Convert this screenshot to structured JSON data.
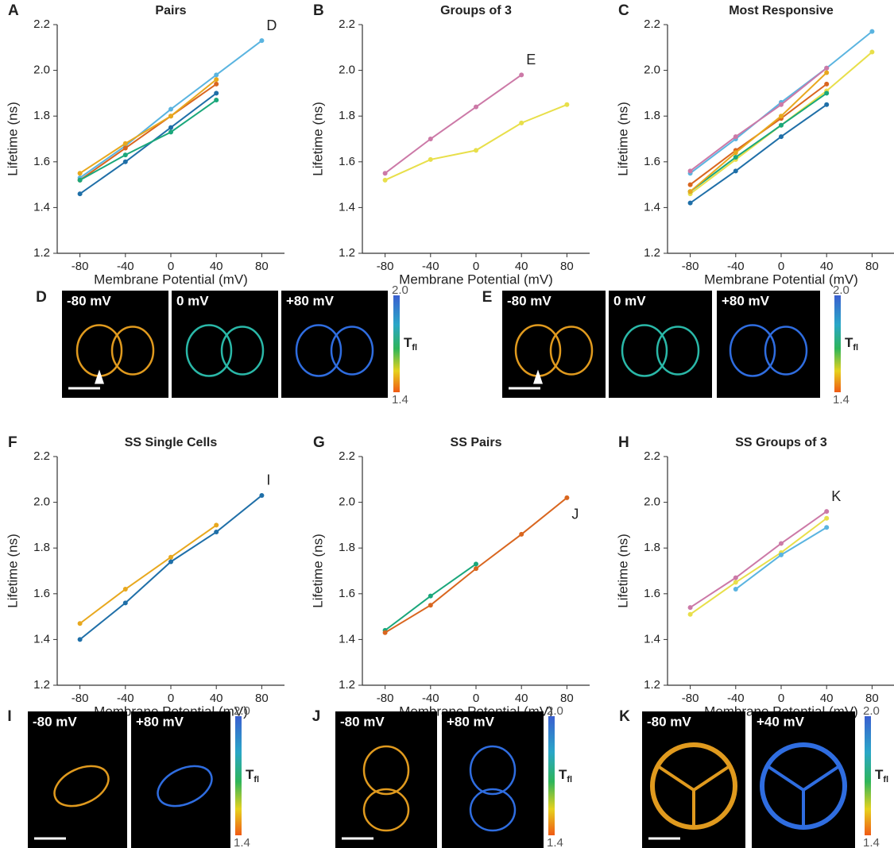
{
  "chart_data": [
    {
      "type": "line",
      "panel": "A",
      "title": "Pairs",
      "xlabel": "Membrane Potential (mV)",
      "ylabel": "Lifetime (ns)",
      "annotation": "D",
      "x": [
        -80,
        -40,
        0,
        40,
        80
      ],
      "xlim": [
        -100,
        100
      ],
      "xticks": [
        -80,
        -40,
        0,
        40,
        80
      ],
      "ylim": [
        1.2,
        2.2
      ],
      "yticks": [
        1.2,
        1.4,
        1.6,
        1.8,
        {
          "value": 2,
          "label": "2.0"
        },
        2.2
      ],
      "series": [
        {
          "color": "#5ab4e0",
          "values": [
            1.53,
            1.67,
            1.83,
            1.98,
            2.13
          ]
        },
        {
          "color": "#d9661f",
          "values": [
            1.52,
            1.66,
            1.8,
            1.94,
            null
          ]
        },
        {
          "color": "#1f6fa8",
          "values": [
            1.46,
            1.6,
            1.75,
            1.9,
            null
          ]
        },
        {
          "color": "#1aa77b",
          "values": [
            1.52,
            1.63,
            1.73,
            1.87,
            null
          ]
        },
        {
          "color": "#e8a81e",
          "values": [
            1.55,
            1.68,
            1.8,
            1.96,
            null
          ]
        }
      ]
    },
    {
      "type": "line",
      "panel": "B",
      "title": "Groups of 3",
      "xlabel": "Membrane Potential (mV)",
      "ylabel": "Lifetime (ns)",
      "annotation": "E",
      "x": [
        -80,
        -40,
        0,
        40,
        80
      ],
      "xlim": [
        -100,
        100
      ],
      "xticks": [
        -80,
        -40,
        0,
        40,
        80
      ],
      "ylim": [
        1.2,
        2.2
      ],
      "yticks": [
        1.2,
        1.4,
        1.6,
        1.8,
        {
          "value": 2,
          "label": "2.0"
        },
        2.2
      ],
      "series": [
        {
          "color": "#cc79a7",
          "values": [
            1.55,
            1.7,
            1.84,
            1.98,
            null
          ]
        },
        {
          "color": "#e8df4a",
          "values": [
            1.52,
            1.61,
            1.65,
            1.77,
            1.85
          ]
        }
      ]
    },
    {
      "type": "line",
      "panel": "C",
      "title": "Most Responsive",
      "xlabel": "Membrane Potential (mV)",
      "ylabel": "Lifetime (ns)",
      "x": [
        -80,
        -40,
        0,
        40,
        80
      ],
      "xlim": [
        -100,
        100
      ],
      "xticks": [
        -80,
        -40,
        0,
        40,
        80
      ],
      "ylim": [
        1.2,
        2.2
      ],
      "yticks": [
        1.2,
        1.4,
        1.6,
        1.8,
        {
          "value": 2,
          "label": "2.0"
        },
        2.2
      ],
      "series": [
        {
          "color": "#5ab4e0",
          "values": [
            1.55,
            1.7,
            1.86,
            2.01,
            2.17
          ]
        },
        {
          "color": "#e8df4a",
          "values": [
            1.46,
            1.61,
            1.76,
            1.91,
            2.08
          ]
        },
        {
          "color": "#cc79a7",
          "values": [
            1.56,
            1.71,
            1.85,
            2.01,
            null
          ]
        },
        {
          "color": "#d9661f",
          "values": [
            1.5,
            1.65,
            1.79,
            1.94,
            null
          ]
        },
        {
          "color": "#1f6fa8",
          "values": [
            1.42,
            1.56,
            1.71,
            1.85,
            null
          ]
        },
        {
          "color": "#1aa77b",
          "values": [
            1.47,
            1.62,
            1.76,
            1.9,
            null
          ]
        },
        {
          "color": "#e8a81e",
          "values": [
            1.47,
            1.64,
            1.8,
            1.99,
            null
          ]
        }
      ]
    },
    {
      "type": "line",
      "panel": "F",
      "title": "SS Single Cells",
      "xlabel": "Membrane Potential (mV)",
      "ylabel": "Lifetime (ns)",
      "annotation": "I",
      "x": [
        -80,
        -40,
        0,
        40,
        80
      ],
      "xlim": [
        -100,
        100
      ],
      "xticks": [
        -80,
        -40,
        0,
        40,
        80
      ],
      "ylim": [
        1.2,
        2.2
      ],
      "yticks": [
        1.2,
        1.4,
        1.6,
        1.8,
        {
          "value": 2,
          "label": "2.0"
        },
        2.2
      ],
      "series": [
        {
          "color": "#e8a81e",
          "values": [
            1.47,
            1.62,
            1.76,
            1.9,
            null
          ]
        },
        {
          "color": "#1f6fa8",
          "values": [
            1.4,
            1.56,
            1.74,
            1.87,
            2.03
          ]
        }
      ]
    },
    {
      "type": "line",
      "panel": "G",
      "title": "SS Pairs",
      "xlabel": "Membrane Potential (mV)",
      "ylabel": "Lifetime (ns)",
      "annotation": "J",
      "x": [
        -80,
        -40,
        0,
        40,
        80
      ],
      "xlim": [
        -100,
        100
      ],
      "xticks": [
        -80,
        -40,
        0,
        40,
        80
      ],
      "ylim": [
        1.2,
        2.2
      ],
      "yticks": [
        1.2,
        1.4,
        1.6,
        1.8,
        {
          "value": 2,
          "label": "2.0"
        },
        2.2
      ],
      "series": [
        {
          "color": "#1aa77b",
          "values": [
            1.44,
            1.59,
            1.73,
            null,
            null
          ]
        },
        {
          "color": "#d9661f",
          "values": [
            1.43,
            1.55,
            1.71,
            1.86,
            2.02
          ]
        }
      ]
    },
    {
      "type": "line",
      "panel": "H",
      "title": "SS Groups of 3",
      "xlabel": "Membrane Potential (mV)",
      "ylabel": "Lifetime (ns)",
      "annotation": "K",
      "x": [
        -80,
        -40,
        0,
        40,
        80
      ],
      "xlim": [
        -100,
        100
      ],
      "xticks": [
        -80,
        -40,
        0,
        40,
        80
      ],
      "ylim": [
        1.2,
        2.2
      ],
      "yticks": [
        1.2,
        1.4,
        1.6,
        1.8,
        {
          "value": 2,
          "label": "2.0"
        },
        2.2
      ],
      "series": [
        {
          "color": "#cc79a7",
          "values": [
            1.54,
            1.67,
            1.82,
            1.96,
            null
          ]
        },
        {
          "color": "#e8df4a",
          "values": [
            1.51,
            1.65,
            1.78,
            1.93,
            null
          ]
        },
        {
          "color": "#5ab4e0",
          "values": [
            null,
            1.62,
            1.77,
            1.89,
            null
          ]
        }
      ]
    }
  ],
  "image_panels": [
    {
      "panel": "D",
      "frames": [
        "-80 mV",
        "0 mV",
        "+80 mV"
      ],
      "colorbar": {
        "max": "2.0",
        "label": "T",
        "sub": "fl",
        "min": "1.4"
      }
    },
    {
      "panel": "E",
      "frames": [
        "-80 mV",
        "0 mV",
        "+80 mV"
      ],
      "colorbar": {
        "max": "2.0",
        "label": "T",
        "sub": "fl",
        "min": "1.4"
      }
    },
    {
      "panel": "I",
      "frames": [
        "-80 mV",
        "+80 mV"
      ],
      "colorbar": {
        "max": "2.0",
        "label": "T",
        "sub": "fl",
        "min": "1.4"
      }
    },
    {
      "panel": "J",
      "frames": [
        "-80 mV",
        "+80 mV"
      ],
      "colorbar": {
        "max": "2.0",
        "label": "T",
        "sub": "fl",
        "min": "1.4"
      }
    },
    {
      "panel": "K",
      "frames": [
        "-80 mV",
        "+40 mV"
      ],
      "colorbar": {
        "max": "2.0",
        "label": "T",
        "sub": "fl",
        "min": "1.4"
      }
    }
  ]
}
